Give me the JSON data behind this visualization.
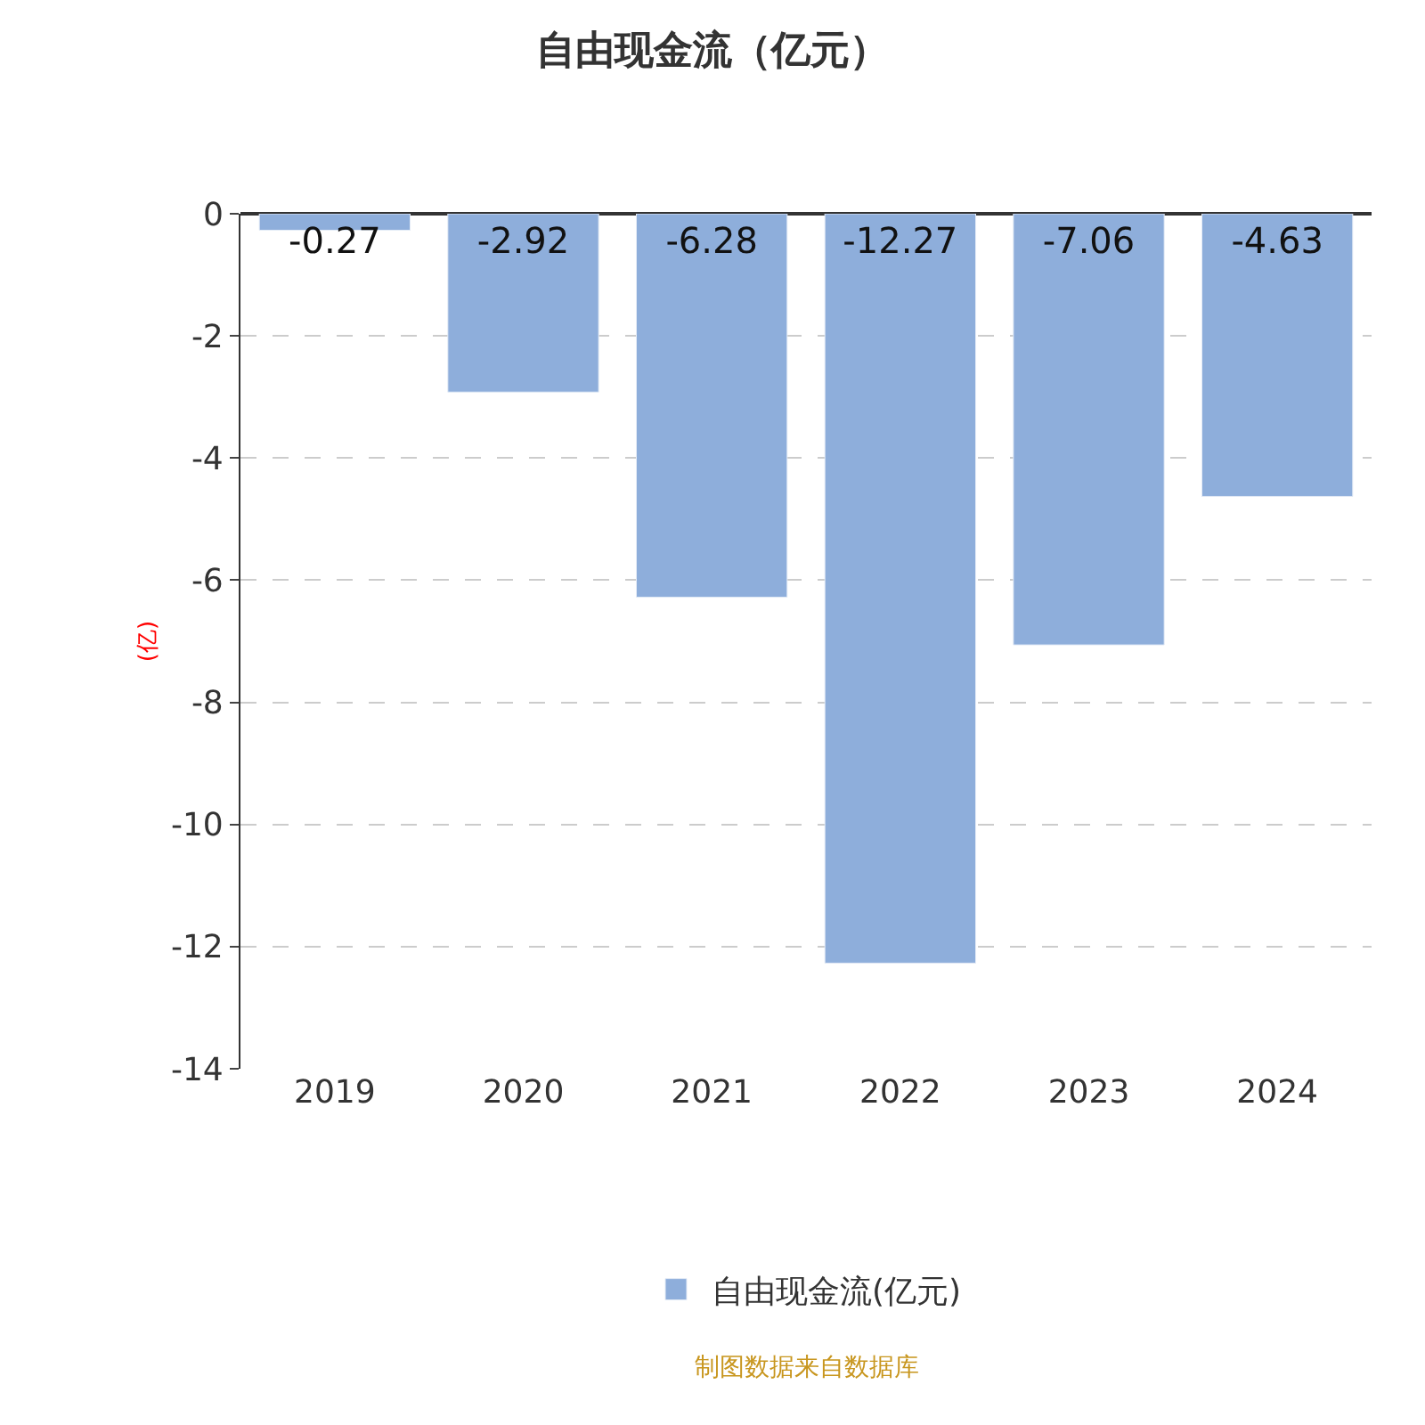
{
  "chart_data": {
    "type": "bar",
    "title": "自由现金流（亿元）",
    "ylabel": "(亿)",
    "categories": [
      "2019",
      "2020",
      "2021",
      "2022",
      "2023",
      "2024"
    ],
    "series": [
      {
        "name": "自由现金流(亿元)",
        "color": "#8eaedb",
        "values": [
          -0.27,
          -2.92,
          -6.28,
          -12.27,
          -7.06,
          -4.63
        ]
      }
    ],
    "ylim": [
      -14,
      0
    ],
    "yticks": [
      0,
      -2,
      -4,
      -6,
      -8,
      -10,
      -12,
      -14
    ],
    "grid": "y",
    "legend": "bottom",
    "data_labels": true,
    "annotations": [
      "制图数据来自数据库"
    ]
  }
}
